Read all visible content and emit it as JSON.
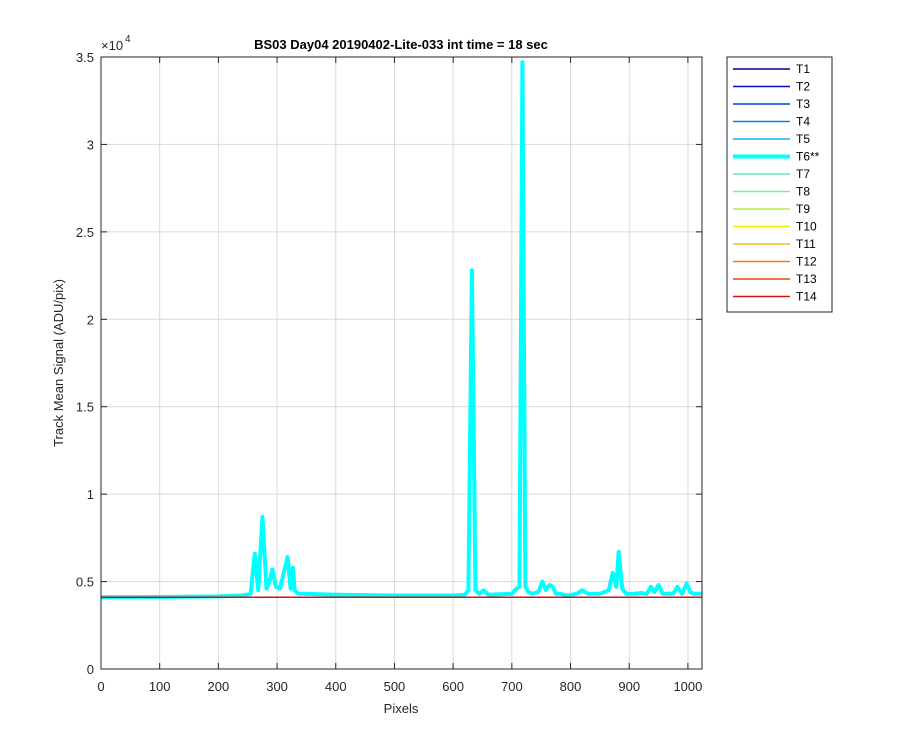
{
  "chart_data": {
    "type": "line",
    "title": "BS03 Day04 20190402-Lite-033 int time = 18 sec",
    "xlabel": "Pixels",
    "ylabel": "Track Mean Signal (ADU/pix)",
    "y_exponent_label": "×10",
    "y_exponent_power": "4",
    "xlim": [
      0,
      1024
    ],
    "ylim": [
      0,
      35000
    ],
    "xticks": [
      0,
      100,
      200,
      300,
      400,
      500,
      600,
      700,
      800,
      900,
      1000
    ],
    "yticks": [
      0,
      5000,
      10000,
      15000,
      20000,
      25000,
      30000,
      35000
    ],
    "ytick_labels": [
      "0",
      "0.5",
      "1",
      "1.5",
      "2",
      "2.5",
      "3",
      "3.5"
    ],
    "grid": true,
    "legend_position": "outside-right-top",
    "baseline_value": 4100,
    "series": [
      {
        "name": "T1",
        "color": "#00008f",
        "width": 1.5,
        "highlight": false
      },
      {
        "name": "T2",
        "color": "#0010c8",
        "width": 1.5,
        "highlight": false
      },
      {
        "name": "T3",
        "color": "#0040e8",
        "width": 1.5,
        "highlight": false
      },
      {
        "name": "T4",
        "color": "#0080f0",
        "width": 1.5,
        "highlight": false
      },
      {
        "name": "T5",
        "color": "#10b0f0",
        "width": 1.5,
        "highlight": false
      },
      {
        "name": "T6**",
        "color": "#00ffff",
        "width": 4,
        "highlight": true,
        "x": [
          0,
          100,
          200,
          240,
          255,
          262,
          268,
          275,
          282,
          288,
          292,
          298,
          305,
          312,
          318,
          323,
          327,
          330,
          336,
          345,
          400,
          500,
          600,
          620,
          626,
          632,
          638,
          645,
          652,
          660,
          700,
          708,
          713,
          718,
          723,
          728,
          735,
          745,
          752,
          758,
          764,
          770,
          775,
          782,
          795,
          810,
          820,
          830,
          850,
          865,
          872,
          878,
          882,
          888,
          895,
          910,
          920,
          930,
          937,
          943,
          950,
          957,
          965,
          975,
          982,
          990,
          998,
          1004,
          1010,
          1024
        ],
        "y": [
          4100,
          4120,
          4150,
          4200,
          4300,
          6600,
          4500,
          8700,
          4600,
          5100,
          5700,
          4700,
          4600,
          5600,
          6400,
          4600,
          5800,
          4500,
          4300,
          4300,
          4250,
          4200,
          4200,
          4250,
          4500,
          22800,
          4500,
          4300,
          4500,
          4250,
          4300,
          4600,
          4700,
          34700,
          4700,
          4400,
          4300,
          4400,
          5000,
          4500,
          4800,
          4700,
          4300,
          4300,
          4200,
          4300,
          4500,
          4300,
          4300,
          4500,
          5500,
          4700,
          6700,
          4600,
          4300,
          4300,
          4350,
          4300,
          4700,
          4400,
          4800,
          4300,
          4300,
          4300,
          4700,
          4300,
          4900,
          4400,
          4300,
          4300
        ]
      },
      {
        "name": "T7",
        "color": "#5de8c8",
        "width": 1.5,
        "highlight": false
      },
      {
        "name": "T8",
        "color": "#80f080",
        "width": 1.5,
        "highlight": false
      },
      {
        "name": "T9",
        "color": "#b8f040",
        "width": 1.5,
        "highlight": false
      },
      {
        "name": "T10",
        "color": "#f0f000",
        "width": 1.5,
        "highlight": false
      },
      {
        "name": "T11",
        "color": "#f0c020",
        "width": 1.5,
        "highlight": false
      },
      {
        "name": "T12",
        "color": "#f08020",
        "width": 1.5,
        "highlight": false
      },
      {
        "name": "T13",
        "color": "#f04010",
        "width": 1.5,
        "highlight": false
      },
      {
        "name": "T14",
        "color": "#d01010",
        "width": 1.5,
        "highlight": false
      }
    ]
  }
}
